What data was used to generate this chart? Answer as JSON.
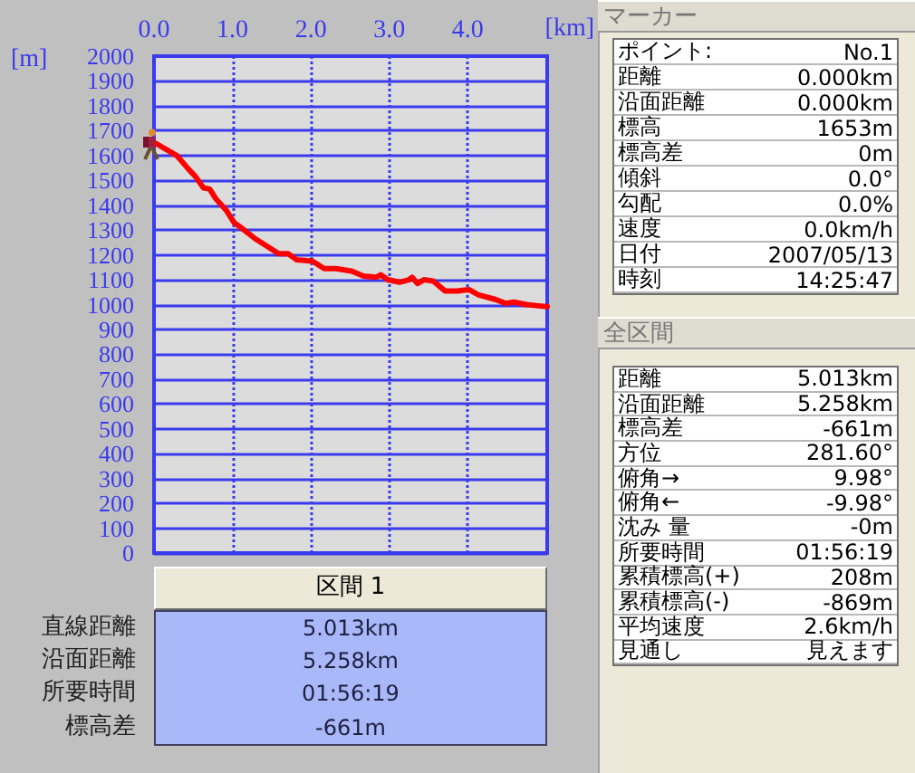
{
  "chart_data": [
    {
      "type": "line",
      "xlabel": "[km]",
      "ylabel": "[m]",
      "x": [
        0,
        0.29,
        0.44,
        0.53,
        0.63,
        0.71,
        0.79,
        0.92,
        1.02,
        1.13,
        1.29,
        1.44,
        1.59,
        1.71,
        1.82,
        2.02,
        2.17,
        2.32,
        2.52,
        2.67,
        2.83,
        2.89,
        2.98,
        3.13,
        3.25,
        3.29,
        3.36,
        3.44,
        3.56,
        3.71,
        3.87,
        4.02,
        4.13,
        4.36,
        4.48,
        4.59,
        4.75,
        4.9,
        5.013
      ],
      "series": [
        {
          "color": "#ff0000",
          "values": [
            1653,
            1600,
            1545,
            1515,
            1470,
            1465,
            1425,
            1380,
            1330,
            1305,
            1265,
            1235,
            1205,
            1205,
            1180,
            1175,
            1145,
            1145,
            1135,
            1115,
            1110,
            1120,
            1100,
            1090,
            1100,
            1110,
            1085,
            1100,
            1095,
            1055,
            1055,
            1060,
            1040,
            1020,
            1005,
            1010,
            1000,
            995,
            992
          ]
        }
      ],
      "xlim": [
        0,
        5.013
      ],
      "xticks": [
        {
          "value": 0,
          "label": "0.0"
        },
        {
          "value": 1,
          "label": "1.0"
        },
        {
          "value": 2,
          "label": "2.0"
        },
        {
          "value": 3,
          "label": "3.0"
        },
        {
          "value": 4,
          "label": "4.0"
        }
      ],
      "ylim": [
        0,
        2000
      ],
      "yticks": [
        0,
        100,
        200,
        300,
        400,
        500,
        600,
        700,
        800,
        900,
        1000,
        1100,
        1200,
        1300,
        1400,
        1500,
        1600,
        1700,
        1800,
        1900,
        2000
      ],
      "grid": true
    },
    {
      "type": "other",
      "title": "マーカー",
      "annotations": [
        "ポイント:",
        "No.1",
        "距離",
        "0.000km",
        "沿面距離",
        "0.000km",
        "標高",
        "1653m",
        "標高差",
        "0m",
        "傾斜",
        "0.0°",
        "勾配",
        "0.0%",
        "速度",
        "0.0km/h",
        "日付",
        "2007/05/13",
        "時刻",
        "14:25:47"
      ]
    },
    {
      "type": "other",
      "title": "全区間",
      "annotations": [
        "距離",
        "5.013km",
        "沿面距離",
        "5.258km",
        "標高差",
        "-661m",
        "方位",
        "281.60°",
        "俯角→",
        "9.98°",
        "俯角←",
        "-9.98°",
        "沈み 量",
        "-0m",
        "所要時間",
        "01:56:19",
        "累積標高(+)",
        "208m",
        "累積標高(-)",
        "-869m",
        "平均速度",
        "2.6km/h",
        "見通し",
        "見えます"
      ]
    },
    {
      "type": "other",
      "title": "区間 1",
      "annotations": [
        "直線距離",
        "5.013km",
        "沿面距離",
        "5.258km",
        "所要時間",
        "01:56:19",
        "標高差",
        "-661m"
      ]
    }
  ]
}
